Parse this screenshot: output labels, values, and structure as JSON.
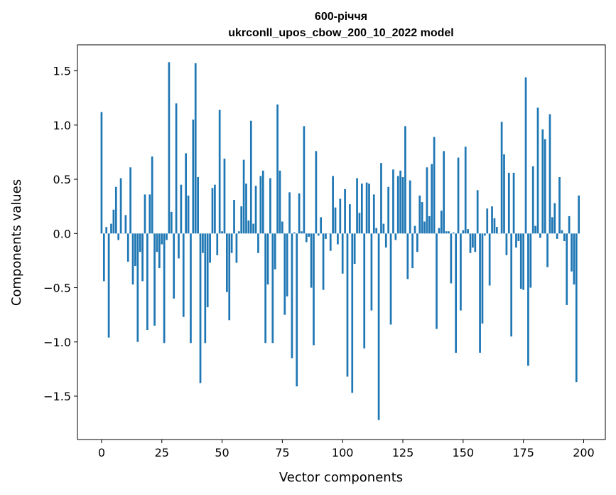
{
  "chart_data": {
    "type": "bar",
    "title": "600-річчя",
    "subtitle": "ukrconll_upos_cbow_200_10_2022 model",
    "xlabel": "Vector components",
    "ylabel": "Components values",
    "xlim": [
      -10,
      209
    ],
    "ylim": [
      -1.9,
      1.74
    ],
    "x_ticks": [
      0,
      25,
      50,
      75,
      100,
      125,
      150,
      175,
      200
    ],
    "x_tick_labels": [
      "0",
      "25",
      "50",
      "75",
      "100",
      "125",
      "150",
      "175",
      "200"
    ],
    "y_ticks": [
      -1.5,
      -1.0,
      -0.5,
      0.0,
      0.5,
      1.0,
      1.5
    ],
    "y_tick_labels": [
      "−1.5",
      "−1.0",
      "−0.5",
      "0.0",
      "0.5",
      "1.0",
      "1.5"
    ],
    "bar_color": "#1f77b4",
    "grid": false,
    "values": [
      1.12,
      -0.44,
      0.06,
      -0.96,
      0.09,
      0.22,
      0.43,
      -0.06,
      0.51,
      0.0,
      0.17,
      -0.26,
      0.61,
      -0.47,
      -0.3,
      -1.0,
      -0.17,
      -0.44,
      0.36,
      -0.89,
      0.36,
      0.71,
      -0.85,
      -0.17,
      -0.32,
      -0.1,
      -1.01,
      -0.06,
      1.58,
      0.2,
      -0.6,
      1.2,
      -0.23,
      0.45,
      -0.77,
      0.74,
      0.35,
      -1.01,
      1.05,
      1.57,
      0.52,
      -1.38,
      -0.18,
      -1.01,
      -0.68,
      -0.27,
      0.42,
      0.45,
      -0.2,
      1.14,
      0.02,
      0.69,
      -0.54,
      -0.8,
      -0.18,
      0.31,
      -0.27,
      0.02,
      0.25,
      0.68,
      0.46,
      0.12,
      1.04,
      0.09,
      0.44,
      -0.18,
      0.53,
      0.58,
      -1.01,
      -0.47,
      0.51,
      -1.01,
      -0.33,
      1.19,
      0.58,
      0.11,
      -0.75,
      -0.58,
      0.38,
      -1.15,
      0.01,
      -1.41,
      0.37,
      0.02,
      0.99,
      -0.08,
      -0.03,
      -0.5,
      -1.03,
      0.76,
      -0.02,
      0.15,
      -0.52,
      -0.05,
      0.0,
      -0.16,
      0.53,
      0.24,
      -0.1,
      0.32,
      -0.37,
      0.41,
      -1.32,
      0.27,
      -1.47,
      -0.28,
      0.51,
      0.19,
      0.46,
      -1.06,
      0.47,
      0.46,
      -0.71,
      0.36,
      0.05,
      -1.72,
      0.65,
      0.09,
      -0.13,
      0.43,
      -0.84,
      0.59,
      -0.06,
      0.53,
      0.58,
      0.52,
      0.99,
      -0.42,
      0.49,
      -0.32,
      0.07,
      -0.17,
      0.35,
      0.29,
      0.11,
      0.61,
      0.16,
      0.64,
      0.89,
      -0.88,
      0.05,
      0.21,
      0.76,
      0.02,
      0.02,
      -0.46,
      0.01,
      -1.1,
      0.7,
      -0.71,
      0.03,
      0.8,
      0.04,
      -0.18,
      -0.13,
      -0.17,
      0.4,
      -1.1,
      -0.83,
      -0.02,
      0.23,
      -0.48,
      0.25,
      0.14,
      0.06,
      0.0,
      1.03,
      0.73,
      -0.2,
      0.56,
      -0.95,
      0.56,
      -0.13,
      -0.07,
      -0.51,
      -0.52,
      1.44,
      -1.22,
      -0.5,
      0.62,
      0.07,
      1.16,
      -0.04,
      0.96,
      0.87,
      -0.31,
      1.1,
      0.15,
      0.28,
      -0.05,
      0.52,
      0.03,
      -0.07,
      -0.66,
      0.16,
      -0.35,
      -0.47,
      -1.37,
      0.35
    ]
  }
}
